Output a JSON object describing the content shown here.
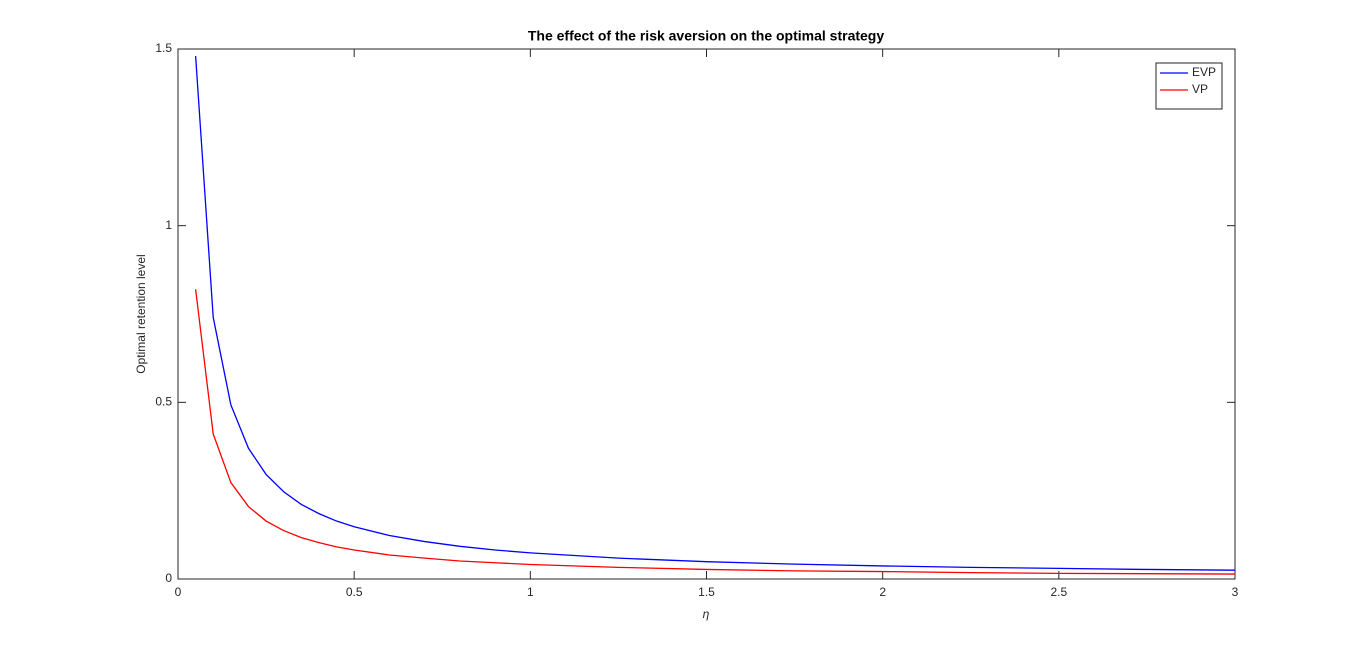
{
  "chart_data": {
    "type": "line",
    "title": "The effect of the risk aversion on the optimal strategy",
    "x_label": "η",
    "y_label": "Optimal retention level",
    "x": [
      0.05,
      0.1,
      0.15,
      0.2,
      0.25,
      0.3,
      0.35,
      0.4,
      0.45,
      0.5,
      0.6,
      0.7,
      0.8,
      0.9,
      1,
      1.25,
      1.5,
      1.75,
      2,
      2.25,
      2.5,
      2.75,
      3
    ],
    "series": [
      {
        "name": "EVP",
        "color": "#0000ff",
        "values": [
          1.48,
          0.74,
          0.493,
          0.37,
          0.296,
          0.247,
          0.211,
          0.185,
          0.164,
          0.148,
          0.123,
          0.106,
          0.0925,
          0.082,
          0.074,
          0.059,
          0.049,
          0.042,
          0.037,
          0.033,
          0.03,
          0.027,
          0.025
        ]
      },
      {
        "name": "VP",
        "color": "#ff0000",
        "values": [
          0.82,
          0.41,
          0.273,
          0.205,
          0.164,
          0.137,
          0.117,
          0.103,
          0.091,
          0.082,
          0.068,
          0.059,
          0.051,
          0.046,
          0.041,
          0.033,
          0.027,
          0.023,
          0.021,
          0.018,
          0.016,
          0.015,
          0.014
        ]
      }
    ],
    "xlim": [
      0,
      3
    ],
    "xticks": [
      0,
      0.5,
      1,
      1.5,
      2,
      2.5,
      3
    ],
    "ylim": [
      0,
      1.5
    ],
    "yticks": [
      0,
      0.5,
      1,
      1.5
    ],
    "grid": false,
    "legend": "top-right"
  }
}
